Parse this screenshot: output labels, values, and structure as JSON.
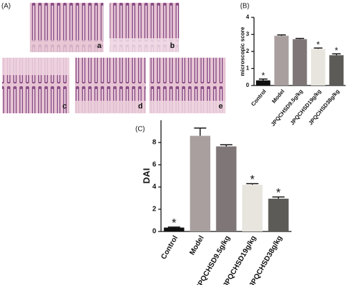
{
  "panel_a": {
    "panel_label": "(A)",
    "images": [
      "a",
      "b",
      "c",
      "d",
      "e"
    ]
  },
  "chart_data": [
    {
      "type": "bar",
      "panel_label": "(B)",
      "ylabel": "microscopic  score",
      "categories": [
        "Control",
        "Model",
        "JPQCHSD9.5g/kg",
        "JPQCHSD19g/kg",
        "JPQCHSD38g/kg"
      ],
      "values": [
        0.3,
        2.92,
        2.72,
        2.15,
        1.78
      ],
      "errors": [
        0.08,
        0.05,
        0.04,
        0.05,
        0.08
      ],
      "annotations": [
        "*",
        null,
        null,
        "*",
        "*"
      ],
      "colors": [
        "#111111",
        "#a99f9f",
        "#7f7777",
        "#e8e5de",
        "#5d5b57"
      ],
      "ylim": [
        0,
        4
      ],
      "yticks": [
        0,
        1,
        2,
        3,
        4
      ]
    },
    {
      "type": "bar",
      "panel_label": "(C)",
      "ylabel": "DAI",
      "categories": [
        "Control",
        "Model",
        "JPQCHSD9.5g/kg",
        "JPQCHSD19g/kg",
        "JPQCHSD38g/kg"
      ],
      "values": [
        0.35,
        8.6,
        7.65,
        4.2,
        2.95
      ],
      "errors": [
        0.05,
        0.7,
        0.15,
        0.1,
        0.15
      ],
      "annotations": [
        "*",
        null,
        null,
        "*",
        "*"
      ],
      "colors": [
        "#111111",
        "#a99f9f",
        "#7f7777",
        "#e8e5de",
        "#5d5b57"
      ],
      "ylim": [
        0,
        10
      ],
      "yticks": [
        0,
        2,
        4,
        6,
        8
      ]
    }
  ]
}
